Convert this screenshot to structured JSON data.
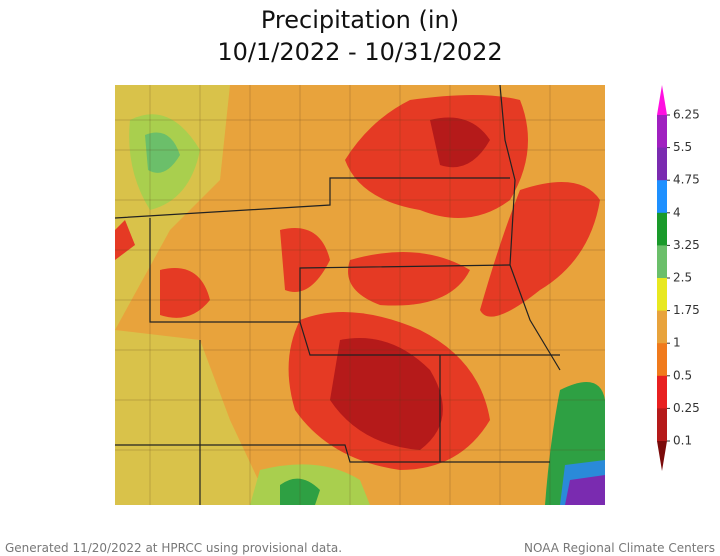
{
  "title": [
    "Precipitation (in)",
    "10/1/2022 - 10/31/2022"
  ],
  "legend": {
    "ticks": [
      6.25,
      5.5,
      4.75,
      4,
      3.25,
      2.5,
      1.75,
      1,
      0.5,
      0.25,
      0.1
    ],
    "colors": [
      "#ff10e0",
      "#a020c0",
      "#7a2bb0",
      "#1e90ff",
      "#1a9a2a",
      "#6bbf6a",
      "#e8e820",
      "#e8a33c",
      "#f07a1c",
      "#e82020",
      "#b51a1a",
      "#7a0a0a"
    ]
  },
  "footer": {
    "left": "Generated 11/20/2022 at HPRCC using provisional data.",
    "right": "NOAA Regional Climate Centers"
  }
}
